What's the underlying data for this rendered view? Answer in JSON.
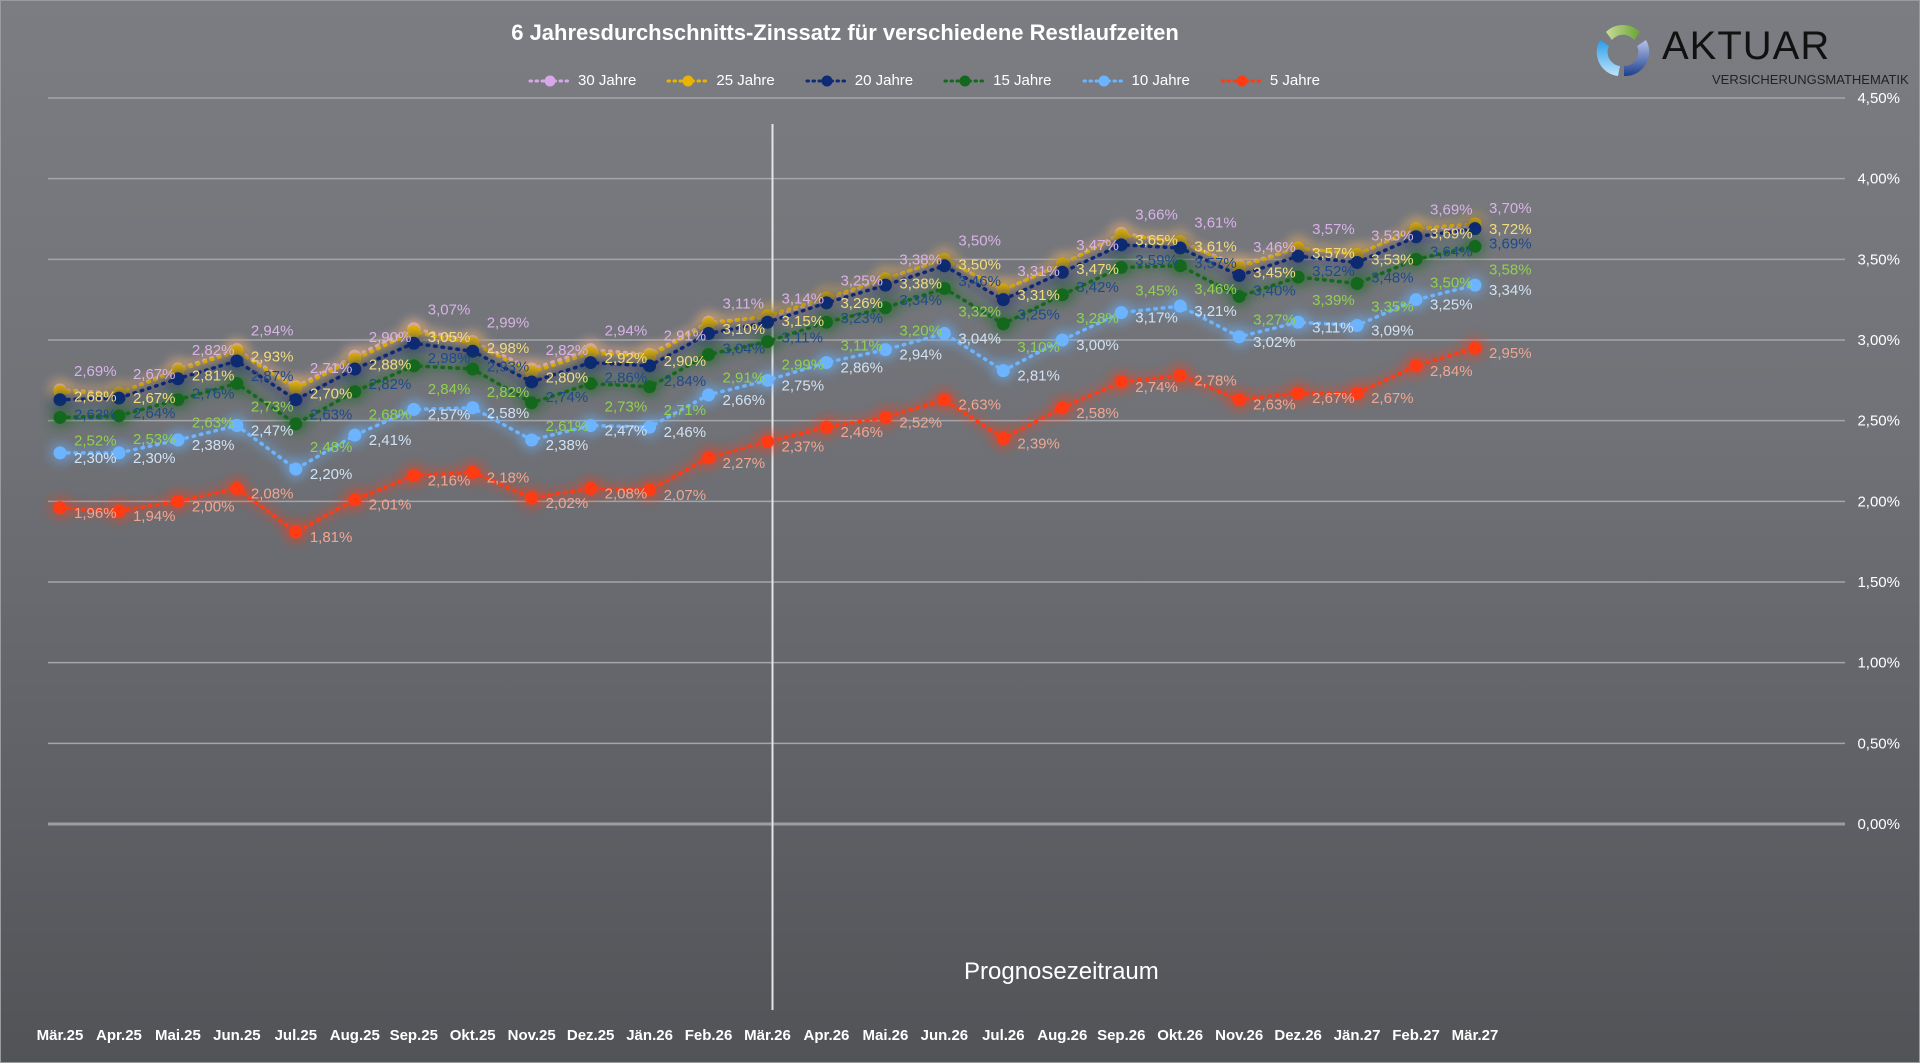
{
  "logo": {
    "name": "AKTUAR",
    "subtitle": "VERSICHERUNGSMATHEMATIK"
  },
  "chart_data": {
    "type": "line",
    "title": "6 Jahresdurchschnitts-Zinssatz für verschiedene Restlaufzeiten",
    "xlabel": "",
    "ylabel": "",
    "ylim": [
      0,
      4.5
    ],
    "yticks": [
      "0,00%",
      "0,50%",
      "1,00%",
      "1,50%",
      "2,00%",
      "2,50%",
      "3,00%",
      "3,50%",
      "4,00%",
      "4,50%"
    ],
    "ytick_values": [
      0,
      0.5,
      1.0,
      1.5,
      2.0,
      2.5,
      3.0,
      3.5,
      4.0,
      4.5
    ],
    "y_axis_side": "right",
    "grid": true,
    "legend_position": "top",
    "categories": [
      "Mär.25",
      "Apr.25",
      "Mai.25",
      "Jun.25",
      "Jul.25",
      "Aug.25",
      "Sep.25",
      "Okt.25",
      "Nov.25",
      "Dez.25",
      "Jän.26",
      "Feb.26",
      "Mär.26",
      "Apr.26",
      "Mai.26",
      "Jun.26",
      "Jul.26",
      "Aug.26",
      "Sep.26",
      "Okt.26",
      "Nov.26",
      "Dez.26",
      "Jän.27",
      "Feb.27",
      "Mär.27"
    ],
    "annotation": {
      "label": "Prognosezeitraum",
      "at_category": "Mär.26"
    },
    "series": [
      {
        "name": "30 Jahre",
        "color": "#d6a8e8",
        "label_color": "#d9b2e8",
        "values": [
          2.69,
          2.67,
          2.82,
          2.94,
          2.71,
          2.9,
          3.07,
          2.99,
          2.82,
          2.94,
          2.91,
          3.11,
          3.14,
          3.25,
          3.38,
          3.5,
          3.31,
          3.47,
          3.66,
          3.61,
          3.46,
          3.57,
          3.53,
          3.69,
          3.7
        ]
      },
      {
        "name": "25 Jahre",
        "color": "#e8b400",
        "label_color": "#f3dc7e",
        "values": [
          2.68,
          2.67,
          2.81,
          2.93,
          2.7,
          2.88,
          3.05,
          2.98,
          2.8,
          2.92,
          2.9,
          3.1,
          3.15,
          3.26,
          3.38,
          3.5,
          3.31,
          3.47,
          3.65,
          3.61,
          3.45,
          3.57,
          3.53,
          3.69,
          3.72
        ]
      },
      {
        "name": "20 Jahre",
        "color": "#0d2a73",
        "label_color": "#1e4a8c",
        "values": [
          2.63,
          2.64,
          2.76,
          2.87,
          2.63,
          2.82,
          2.98,
          2.93,
          2.74,
          2.86,
          2.84,
          3.04,
          3.11,
          3.23,
          3.34,
          3.46,
          3.25,
          3.42,
          3.59,
          3.57,
          3.4,
          3.52,
          3.48,
          3.64,
          3.69
        ]
      },
      {
        "name": "15 Jahre",
        "color": "#14681e",
        "label_color": "#8fd14f",
        "values": [
          2.52,
          2.53,
          2.63,
          2.73,
          2.48,
          2.68,
          2.84,
          2.82,
          2.61,
          2.73,
          2.71,
          2.91,
          2.99,
          3.11,
          3.2,
          3.32,
          3.1,
          3.28,
          3.45,
          3.46,
          3.27,
          3.39,
          3.35,
          3.5,
          3.58
        ]
      },
      {
        "name": "10 Jahre",
        "color": "#6cb4ff",
        "label_color": "#d0e2f4",
        "values": [
          2.3,
          2.3,
          2.38,
          2.47,
          2.2,
          2.41,
          2.57,
          2.58,
          2.38,
          2.47,
          2.46,
          2.66,
          2.75,
          2.86,
          2.94,
          3.04,
          2.81,
          3.0,
          3.17,
          3.21,
          3.02,
          3.11,
          3.09,
          3.25,
          3.34
        ]
      },
      {
        "name": "5 Jahre",
        "color": "#ff3b14",
        "label_color": "#f4a58f",
        "values": [
          1.96,
          1.94,
          2.0,
          2.08,
          1.81,
          2.01,
          2.16,
          2.18,
          2.02,
          2.08,
          2.07,
          2.27,
          2.37,
          2.46,
          2.52,
          2.63,
          2.39,
          2.58,
          2.74,
          2.78,
          2.63,
          2.67,
          2.67,
          2.84,
          2.95
        ]
      }
    ]
  }
}
